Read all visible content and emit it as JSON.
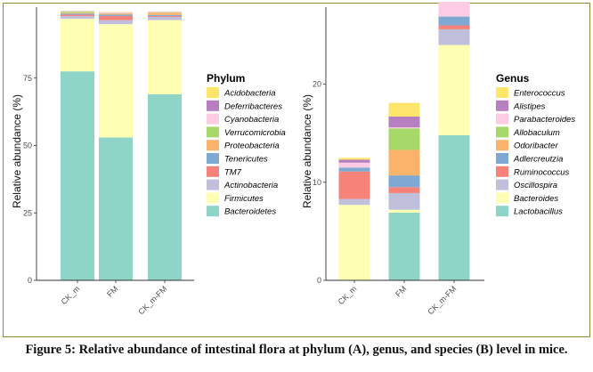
{
  "caption": "Figure 5: Relative abundance of intestinal flora at phylum (A), genus, and species (B) level in mice.",
  "colors": {
    "c1": "#fde66b",
    "c2": "#b57fc0",
    "c3": "#fdcbe4",
    "c4": "#a6d86a",
    "c5": "#fbb36c",
    "c6": "#7fa8d2",
    "c7": "#f6827a",
    "c8": "#c0bfdc",
    "c9": "#ffffb3",
    "c10": "#8ed5c8"
  },
  "chart_data": [
    {
      "type": "bar",
      "stacked": true,
      "categories": [
        "CK_m",
        "FM",
        "CK_m-FM"
      ],
      "ylabel": "Relative abundance (%)",
      "xlabel": "",
      "ylim": [
        0,
        100
      ],
      "yticks": [
        0,
        25,
        50,
        75
      ],
      "legend_title": "Phylum",
      "legend_position": "right",
      "grid": false,
      "series": [
        {
          "name": "Bacteroidetes",
          "color": "#8ed5c8",
          "values": [
            77.5,
            53.0,
            69.0
          ]
        },
        {
          "name": "Firmicutes",
          "color": "#ffffb3",
          "values": [
            19.5,
            42.0,
            27.5
          ]
        },
        {
          "name": "Actinobacteria",
          "color": "#c0bfdc",
          "values": [
            1.0,
            1.5,
            1.2
          ]
        },
        {
          "name": "TM7",
          "color": "#f6827a",
          "values": [
            0.5,
            1.5,
            0.3
          ]
        },
        {
          "name": "Tenericutes",
          "color": "#7fa8d2",
          "values": [
            0.4,
            0.5,
            0.4
          ]
        },
        {
          "name": "Proteobacteria",
          "color": "#fbb36c",
          "values": [
            0.3,
            0.4,
            0.8
          ]
        },
        {
          "name": "Verrucomicrobia",
          "color": "#a6d86a",
          "values": [
            0.4,
            0.1,
            0.1
          ]
        },
        {
          "name": "Cyanobacteria",
          "color": "#fdcbe4",
          "values": [
            0.1,
            0.3,
            0.1
          ]
        },
        {
          "name": "Deferribacteres",
          "color": "#b57fc0",
          "values": [
            0.1,
            0.1,
            0.1
          ]
        },
        {
          "name": "Acidobacteria",
          "color": "#fde66b",
          "values": [
            0.1,
            0.1,
            0.1
          ]
        }
      ]
    },
    {
      "type": "bar",
      "stacked": true,
      "categories": [
        "CK_m",
        "FM",
        "CK_m-FM"
      ],
      "ylabel": "Relative abundance (%)",
      "xlabel": "",
      "ylim": [
        0,
        27.5
      ],
      "yticks": [
        0,
        10,
        20
      ],
      "legend_title": "Genus",
      "legend_position": "right",
      "grid": false,
      "series": [
        {
          "name": "Lactobacillus",
          "color": "#8ed5c8",
          "values": [
            0.0,
            6.9,
            14.8
          ]
        },
        {
          "name": "Bacteroides",
          "color": "#ffffb3",
          "values": [
            7.7,
            0.3,
            9.2
          ]
        },
        {
          "name": "Oscillospira",
          "color": "#c0bfdc",
          "values": [
            0.6,
            1.7,
            1.6
          ]
        },
        {
          "name": "Ruminococcus",
          "color": "#f6827a",
          "values": [
            2.8,
            0.6,
            0.4
          ]
        },
        {
          "name": "Adlercreutzia",
          "color": "#7fa8d2",
          "values": [
            0.4,
            1.2,
            0.9
          ]
        },
        {
          "name": "Odoribacter",
          "color": "#fbb36c",
          "values": [
            0.0,
            2.6,
            0.0
          ]
        },
        {
          "name": "Allobaculum",
          "color": "#a6d86a",
          "values": [
            0.0,
            2.2,
            0.0
          ]
        },
        {
          "name": "Parabacteroides",
          "color": "#fdcbe4",
          "values": [
            0.5,
            0.1,
            1.5
          ]
        },
        {
          "name": "Alistipes",
          "color": "#b57fc0",
          "values": [
            0.3,
            1.1,
            0.0
          ]
        },
        {
          "name": "Enterococcus",
          "color": "#fde66b",
          "values": [
            0.2,
            1.4,
            0.0
          ]
        }
      ]
    }
  ]
}
